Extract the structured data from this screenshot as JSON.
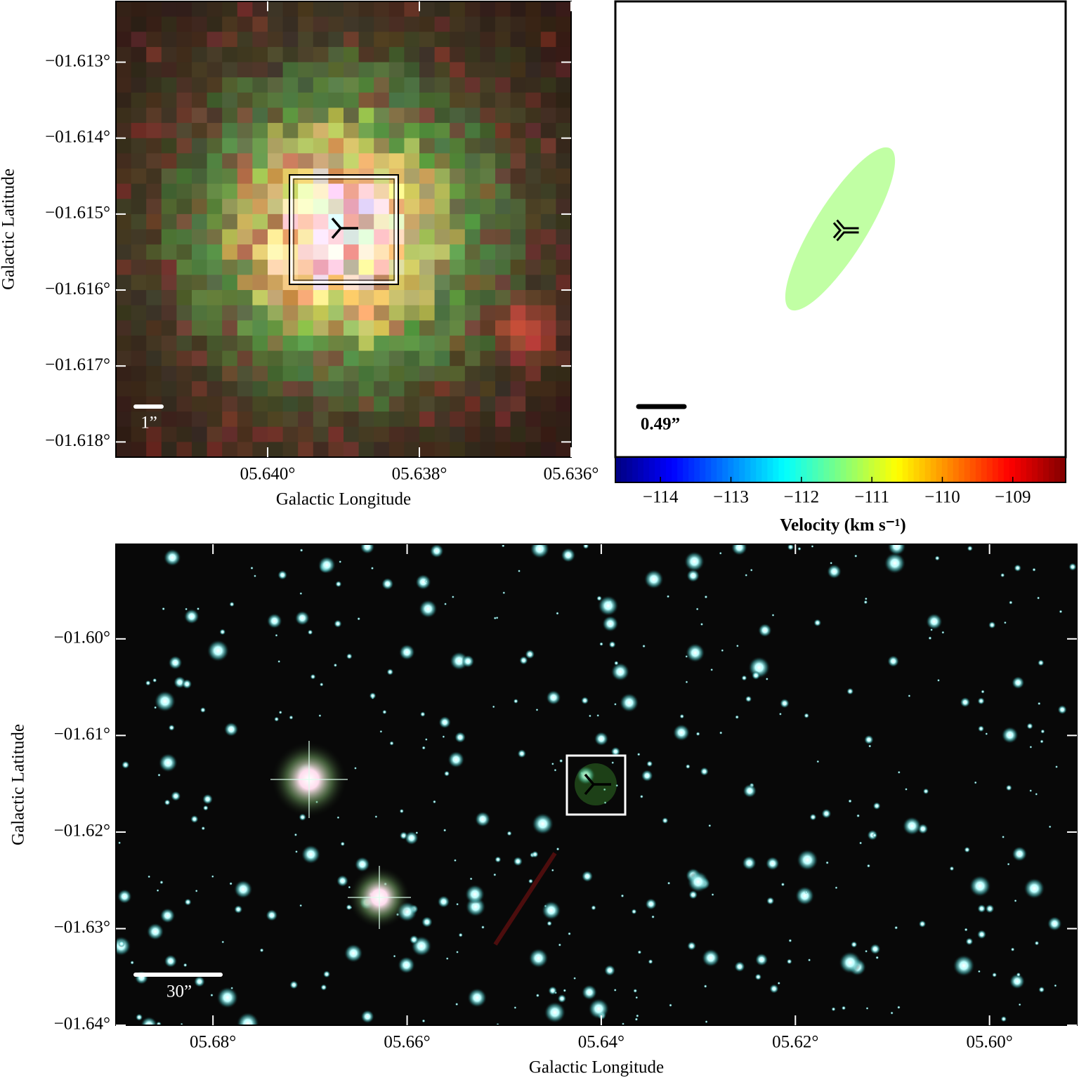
{
  "chart_data": [
    {
      "type": "image",
      "xlabel": "Galactic Longitude",
      "ylabel": "Galactic Latitude",
      "xlim": [
        5.642,
        5.636
      ],
      "ylim": [
        -1.6182,
        -1.6122
      ],
      "xticks": [
        {
          "value": 5.64,
          "label": "05.640°"
        },
        {
          "value": 5.638,
          "label": "05.638°"
        },
        {
          "value": 5.636,
          "label": "05.636°"
        }
      ],
      "yticks": [
        {
          "value": -1.613,
          "label": "−01.613°"
        },
        {
          "value": -1.614,
          "label": "−01.614°"
        },
        {
          "value": -1.615,
          "label": "−01.615°"
        },
        {
          "value": -1.616,
          "label": "−01.616°"
        },
        {
          "value": -1.617,
          "label": "−01.617°"
        },
        {
          "value": -1.618,
          "label": "−01.618°"
        }
      ],
      "scale_label": "1”"
    },
    {
      "type": "velocity_map",
      "colorbar_label": "Velocity (km s⁻¹)",
      "clim": [
        -114.64,
        -108.25
      ],
      "cticks": [
        {
          "value": -114,
          "label": "−114"
        },
        {
          "value": -113,
          "label": "−113"
        },
        {
          "value": -112,
          "label": "−112"
        },
        {
          "value": -111,
          "label": "−111"
        },
        {
          "value": -110,
          "label": "−110"
        },
        {
          "value": -109,
          "label": "−109"
        }
      ],
      "velocity": -111.3,
      "scale_label": "0.49”"
    },
    {
      "type": "image",
      "xlabel": "Galactic Longitude",
      "ylabel": "Galactic Latitude",
      "xlim": [
        5.69,
        5.591
      ],
      "ylim": [
        -1.64,
        -1.5902
      ],
      "xticks": [
        {
          "value": 5.68,
          "label": "05.68°"
        },
        {
          "value": 5.66,
          "label": "05.66°"
        },
        {
          "value": 5.64,
          "label": "05.64°"
        },
        {
          "value": 5.62,
          "label": "05.62°"
        },
        {
          "value": 5.6,
          "label": "05.60°"
        }
      ],
      "yticks": [
        {
          "value": -1.6,
          "label": "−01.60°"
        },
        {
          "value": -1.61,
          "label": "−01.61°"
        },
        {
          "value": -1.62,
          "label": "−01.62°"
        },
        {
          "value": -1.63,
          "label": "−01.63°"
        },
        {
          "value": -1.64,
          "label": "−01.64°"
        }
      ],
      "scale_label": "30”"
    }
  ]
}
